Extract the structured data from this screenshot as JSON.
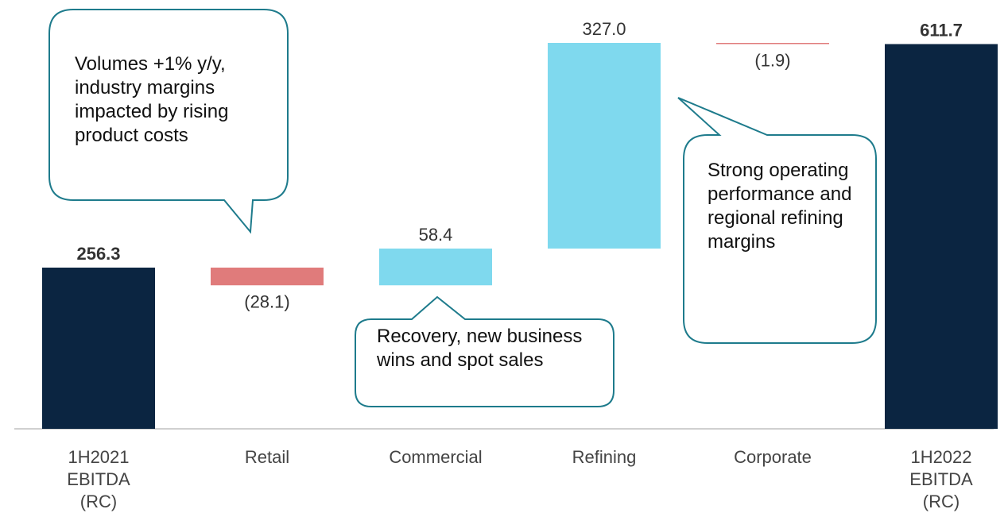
{
  "chart_data": {
    "type": "waterfall",
    "categories": [
      "1H2021 EBITDA (RC)",
      "Retail",
      "Commercial",
      "Refining",
      "Corporate",
      "1H2022 EBITDA (RC)"
    ],
    "values": [
      256.3,
      -28.1,
      58.4,
      327.0,
      -1.9,
      611.7
    ],
    "value_labels": [
      "256.3",
      "(28.1)",
      "58.4",
      "327.0",
      "(1.9)",
      "611.7"
    ],
    "colors": {
      "total": "#0b2541",
      "increase": "#7fd9ee",
      "decrease": "#e07b7b"
    },
    "annotations": [
      "Volumes +1% y/y, industry margins impacted by rising product costs",
      "Recovery, new business wins and spot sales",
      "Strong operating performance and regional refining margins"
    ]
  }
}
